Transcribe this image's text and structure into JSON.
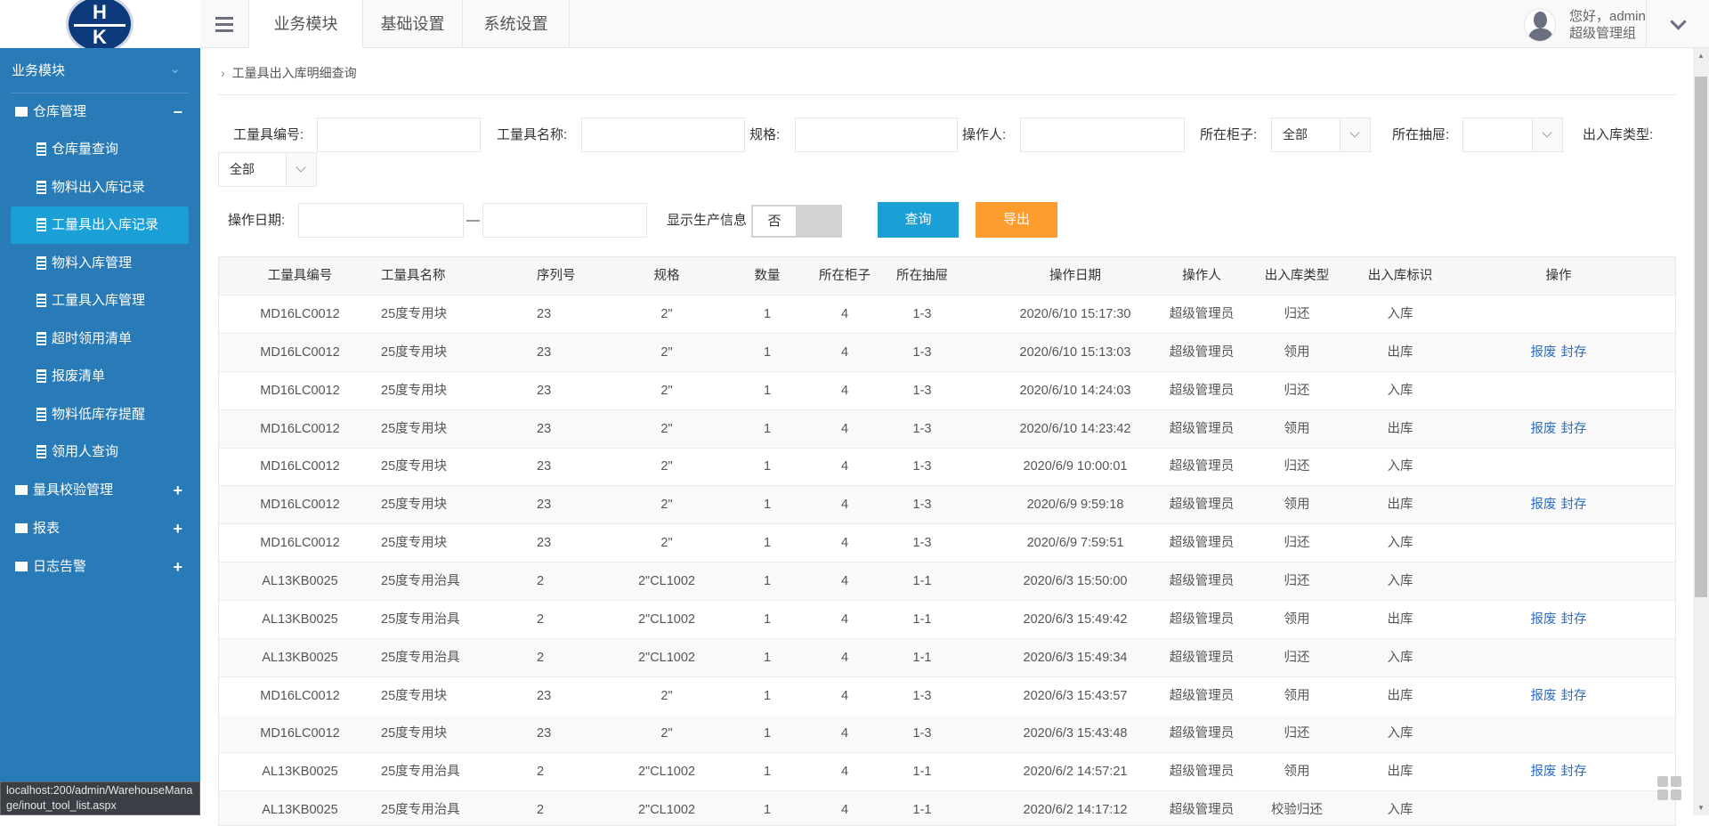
{
  "header": {
    "logo_text": [
      "H",
      "K"
    ],
    "tabs": [
      "业务模块",
      "基础设置",
      "系统设置"
    ],
    "active_tab": 0,
    "greeting": "您好，admin",
    "role": "超级管理组"
  },
  "sidebar": {
    "section": "业务模块",
    "group": "仓库管理",
    "items": [
      "仓库量查询",
      "物料出入库记录",
      "工量具出入库记录",
      "物料入库管理",
      "工量具入库管理",
      "超时领用清单",
      "报废清单",
      "物料低库存提醒",
      "领用人查询"
    ],
    "active_item": 2,
    "groups": [
      "量具校验管理",
      "报表",
      "日志告警"
    ]
  },
  "breadcrumb": "工量具出入库明细查询",
  "filters": {
    "tool_no": "工量具编号:",
    "tool_name": "工量具名称:",
    "spec": "规格:",
    "operator": "操作人:",
    "cabinet": "所在柜子:",
    "cabinet_value": "全部",
    "drawer": "所在抽屉:",
    "drawer_value": "",
    "io_type": "出入库类型:",
    "io_type_value": "全部",
    "date": "操作日期:",
    "date_sep": "—",
    "show_prod": "显示生产信息",
    "toggle_value": "否",
    "query": "查询",
    "export": "导出"
  },
  "colors": {
    "sidebar": "#287bb7",
    "active": "#1aa0d6",
    "query": "#1aa0d6",
    "export": "#ff9c2f",
    "link": "#2d6dc4"
  },
  "table": {
    "columns": [
      "工量具编号",
      "工量具名称",
      "序列号",
      "规格",
      "数量",
      "所在柜子",
      "所在抽屉",
      "操作日期",
      "操作人",
      "出入库类型",
      "出入库标识",
      "操作"
    ],
    "op_labels": [
      "报废",
      "封存"
    ],
    "rows": [
      [
        "MD16LC0012",
        "25度专用块",
        "23",
        "2\"",
        "1",
        "4",
        "1-3",
        "2020/6/10 15:17:30",
        "超级管理员",
        "归还",
        "入库",
        false
      ],
      [
        "MD16LC0012",
        "25度专用块",
        "23",
        "2\"",
        "1",
        "4",
        "1-3",
        "2020/6/10 15:13:03",
        "超级管理员",
        "领用",
        "出库",
        true
      ],
      [
        "MD16LC0012",
        "25度专用块",
        "23",
        "2\"",
        "1",
        "4",
        "1-3",
        "2020/6/10 14:24:03",
        "超级管理员",
        "归还",
        "入库",
        false
      ],
      [
        "MD16LC0012",
        "25度专用块",
        "23",
        "2\"",
        "1",
        "4",
        "1-3",
        "2020/6/10 14:23:42",
        "超级管理员",
        "领用",
        "出库",
        true
      ],
      [
        "MD16LC0012",
        "25度专用块",
        "23",
        "2\"",
        "1",
        "4",
        "1-3",
        "2020/6/9 10:00:01",
        "超级管理员",
        "归还",
        "入库",
        false
      ],
      [
        "MD16LC0012",
        "25度专用块",
        "23",
        "2\"",
        "1",
        "4",
        "1-3",
        "2020/6/9 9:59:18",
        "超级管理员",
        "领用",
        "出库",
        true
      ],
      [
        "MD16LC0012",
        "25度专用块",
        "23",
        "2\"",
        "1",
        "4",
        "1-3",
        "2020/6/9 7:59:51",
        "超级管理员",
        "归还",
        "入库",
        false
      ],
      [
        "AL13KB0025",
        "25度专用治具",
        "2",
        "2\"CL1002",
        "1",
        "4",
        "1-1",
        "2020/6/3 15:50:00",
        "超级管理员",
        "归还",
        "入库",
        false
      ],
      [
        "AL13KB0025",
        "25度专用治具",
        "2",
        "2\"CL1002",
        "1",
        "4",
        "1-1",
        "2020/6/3 15:49:42",
        "超级管理员",
        "领用",
        "出库",
        true
      ],
      [
        "AL13KB0025",
        "25度专用治具",
        "2",
        "2\"CL1002",
        "1",
        "4",
        "1-1",
        "2020/6/3 15:49:34",
        "超级管理员",
        "归还",
        "入库",
        false
      ],
      [
        "MD16LC0012",
        "25度专用块",
        "23",
        "2\"",
        "1",
        "4",
        "1-3",
        "2020/6/3 15:43:57",
        "超级管理员",
        "领用",
        "出库",
        true
      ],
      [
        "MD16LC0012",
        "25度专用块",
        "23",
        "2\"",
        "1",
        "4",
        "1-3",
        "2020/6/3 15:43:48",
        "超级管理员",
        "归还",
        "入库",
        false
      ],
      [
        "AL13KB0025",
        "25度专用治具",
        "2",
        "2\"CL1002",
        "1",
        "4",
        "1-1",
        "2020/6/2 14:57:21",
        "超级管理员",
        "领用",
        "出库",
        true
      ],
      [
        "AL13KB0025",
        "25度专用治具",
        "2",
        "2\"CL1002",
        "1",
        "4",
        "1-1",
        "2020/6/2 14:17:12",
        "超级管理员",
        "校验归还",
        "入库",
        false
      ]
    ]
  },
  "status_url": "localhost:200/admin/WarehouseManage/inout_tool_list.aspx"
}
